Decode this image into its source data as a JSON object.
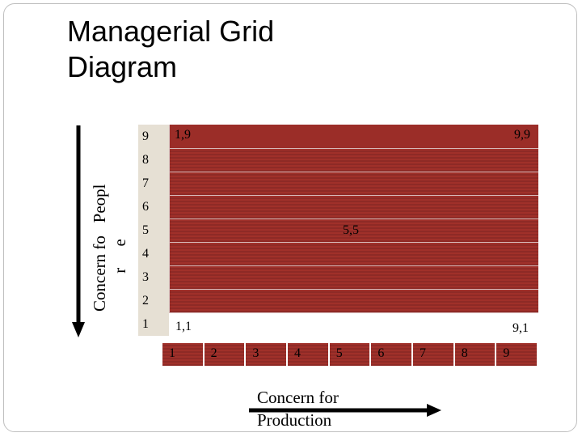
{
  "title": "Managerial Grid\nDiagram",
  "y_axis": {
    "label": "Concern fo   Peopl\n         r     e"
  },
  "x_axis": {
    "label": "Concern for\nProduction",
    "ticks": [
      "1",
      "2",
      "3",
      "4",
      "5",
      "6",
      "7",
      "8",
      "9"
    ]
  },
  "rows": [
    {
      "num": "9",
      "left": "1,9",
      "right": "9,9"
    },
    {
      "num": "8"
    },
    {
      "num": "7"
    },
    {
      "num": "6"
    },
    {
      "num": "5",
      "mid": "5,5"
    },
    {
      "num": "4"
    },
    {
      "num": "3"
    },
    {
      "num": "2"
    },
    {
      "num": "1",
      "left": "1,1",
      "right": "9,1"
    }
  ],
  "colors": {
    "grid_red": "#9b2d28",
    "label_bg": "#e6e0d4",
    "arrow": "#000000"
  }
}
